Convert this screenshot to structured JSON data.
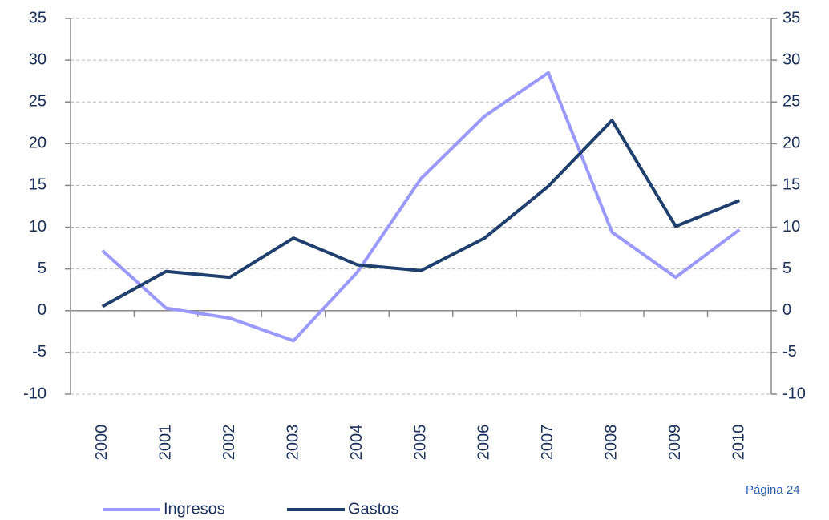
{
  "chart_data": {
    "type": "line",
    "categories": [
      "2000",
      "2001",
      "2002",
      "2003",
      "2004",
      "2005",
      "2006",
      "2007",
      "2008",
      "2009",
      "2010"
    ],
    "series": [
      {
        "name": "Ingresos",
        "color": "#9999ff",
        "values": [
          7.2,
          0.3,
          -0.9,
          -3.6,
          4.6,
          15.8,
          23.3,
          28.5,
          9.4,
          4.0,
          9.7
        ]
      },
      {
        "name": "Gastos",
        "color": "#1f3f6e",
        "values": [
          0.5,
          4.7,
          4.0,
          8.7,
          5.5,
          4.8,
          8.7,
          14.9,
          22.8,
          10.1,
          13.2
        ]
      }
    ],
    "ylim": [
      -10,
      35
    ],
    "yticks": [
      -10,
      -5,
      0,
      5,
      10,
      15,
      20,
      25,
      30,
      35
    ],
    "y2lim": [
      -10,
      35
    ],
    "y2ticks": [
      -10,
      -5,
      0,
      5,
      10,
      15,
      20,
      25,
      30,
      35
    ],
    "grid": true,
    "legend": "bottom",
    "annotation": "Página 24"
  }
}
